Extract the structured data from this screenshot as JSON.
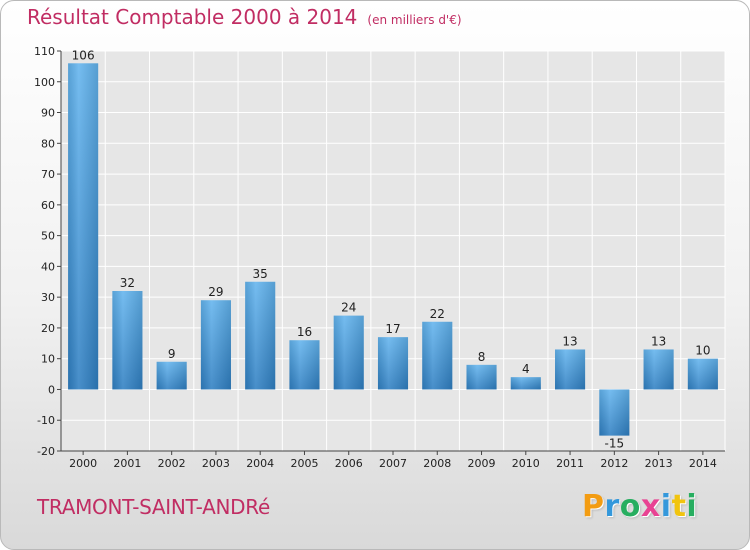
{
  "title": "Résultat Comptable 2000 à 2014",
  "subtitle": "(en milliers d'€)",
  "commune": "TRAMONT-SAINT-ANDRé",
  "logo": {
    "letters": [
      "P",
      "r",
      "o",
      "x",
      "i",
      "t",
      "i"
    ],
    "colors": [
      "#f39c12",
      "#3498db",
      "#27ae60",
      "#e84393",
      "#3498db",
      "#f1c40f",
      "#27ae60"
    ]
  },
  "chart_data": {
    "type": "bar",
    "title": "Résultat Comptable 2000 à 2014",
    "subtitle": "(en milliers d'€)",
    "categories": [
      "2000",
      "2001",
      "2002",
      "2003",
      "2004",
      "2005",
      "2006",
      "2007",
      "2008",
      "2009",
      "2010",
      "2011",
      "2012",
      "2013",
      "2014"
    ],
    "values": [
      106,
      32,
      9,
      29,
      35,
      16,
      24,
      17,
      22,
      8,
      4,
      13,
      -15,
      13,
      10
    ],
    "value_labels": [
      "106",
      "32",
      "9",
      "29",
      "35",
      "16",
      "24",
      "17",
      "22",
      "8",
      "4",
      "13",
      "-15",
      "13",
      "10"
    ],
    "ylim": [
      -20,
      110
    ],
    "yticks": [
      -20,
      -10,
      0,
      10,
      20,
      30,
      40,
      50,
      60,
      70,
      80,
      90,
      100,
      110
    ],
    "xlabel": "",
    "ylabel": "",
    "grid": true,
    "bar_color": "#4ea3e3"
  }
}
